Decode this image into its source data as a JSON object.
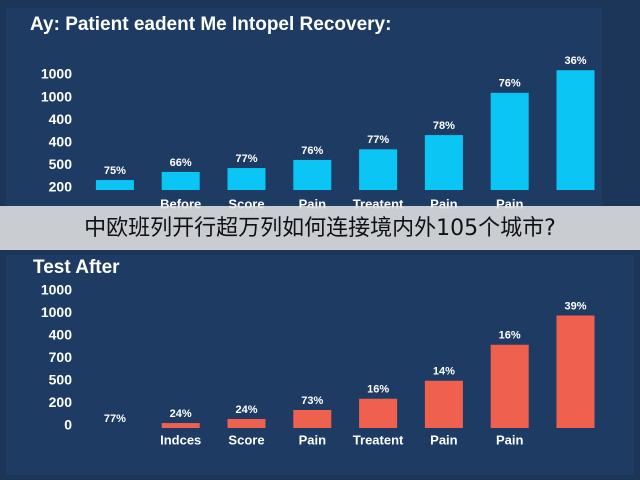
{
  "chart_data": [
    {
      "type": "bar",
      "title": "Ay: Patient eadent Me Intopel Recovery:",
      "categories": [
        null,
        "Before",
        "Score",
        "Pain",
        "Treatent",
        "Pain",
        "Pain",
        null
      ],
      "values": [
        0.44,
        0.8,
        0.97,
        1.33,
        1.8,
        2.43,
        4.3,
        5.3
      ],
      "bar_labels": [
        "75%",
        "66%",
        "77%",
        "76%",
        "77%",
        "78%",
        "76%",
        "36%"
      ],
      "y_labels": [
        "1000",
        "1000",
        "400",
        "400",
        "500",
        "200"
      ],
      "ylim": [
        0,
        5.5
      ],
      "color": "#0bc6f4"
    },
    {
      "type": "bar",
      "title": "Test After",
      "categories": [
        null,
        "Indces",
        "Score",
        "Pain",
        "Treatent",
        "Pain",
        "Pain",
        null
      ],
      "values": [
        0,
        0.22,
        0.4,
        0.8,
        1.3,
        2.1,
        3.7,
        5.0
      ],
      "bar_labels": [
        "77%",
        "24%",
        "24%",
        "73%",
        "16%",
        "14%",
        "16%",
        "39%"
      ],
      "y_labels": [
        "1000",
        "1000",
        "400",
        "700",
        "500",
        "200",
        "0"
      ],
      "ylim": [
        0,
        6.5
      ],
      "color": "#f0604f"
    }
  ],
  "overlay_caption": "中欧班列开行超万列如何连接境内外105个城市?"
}
